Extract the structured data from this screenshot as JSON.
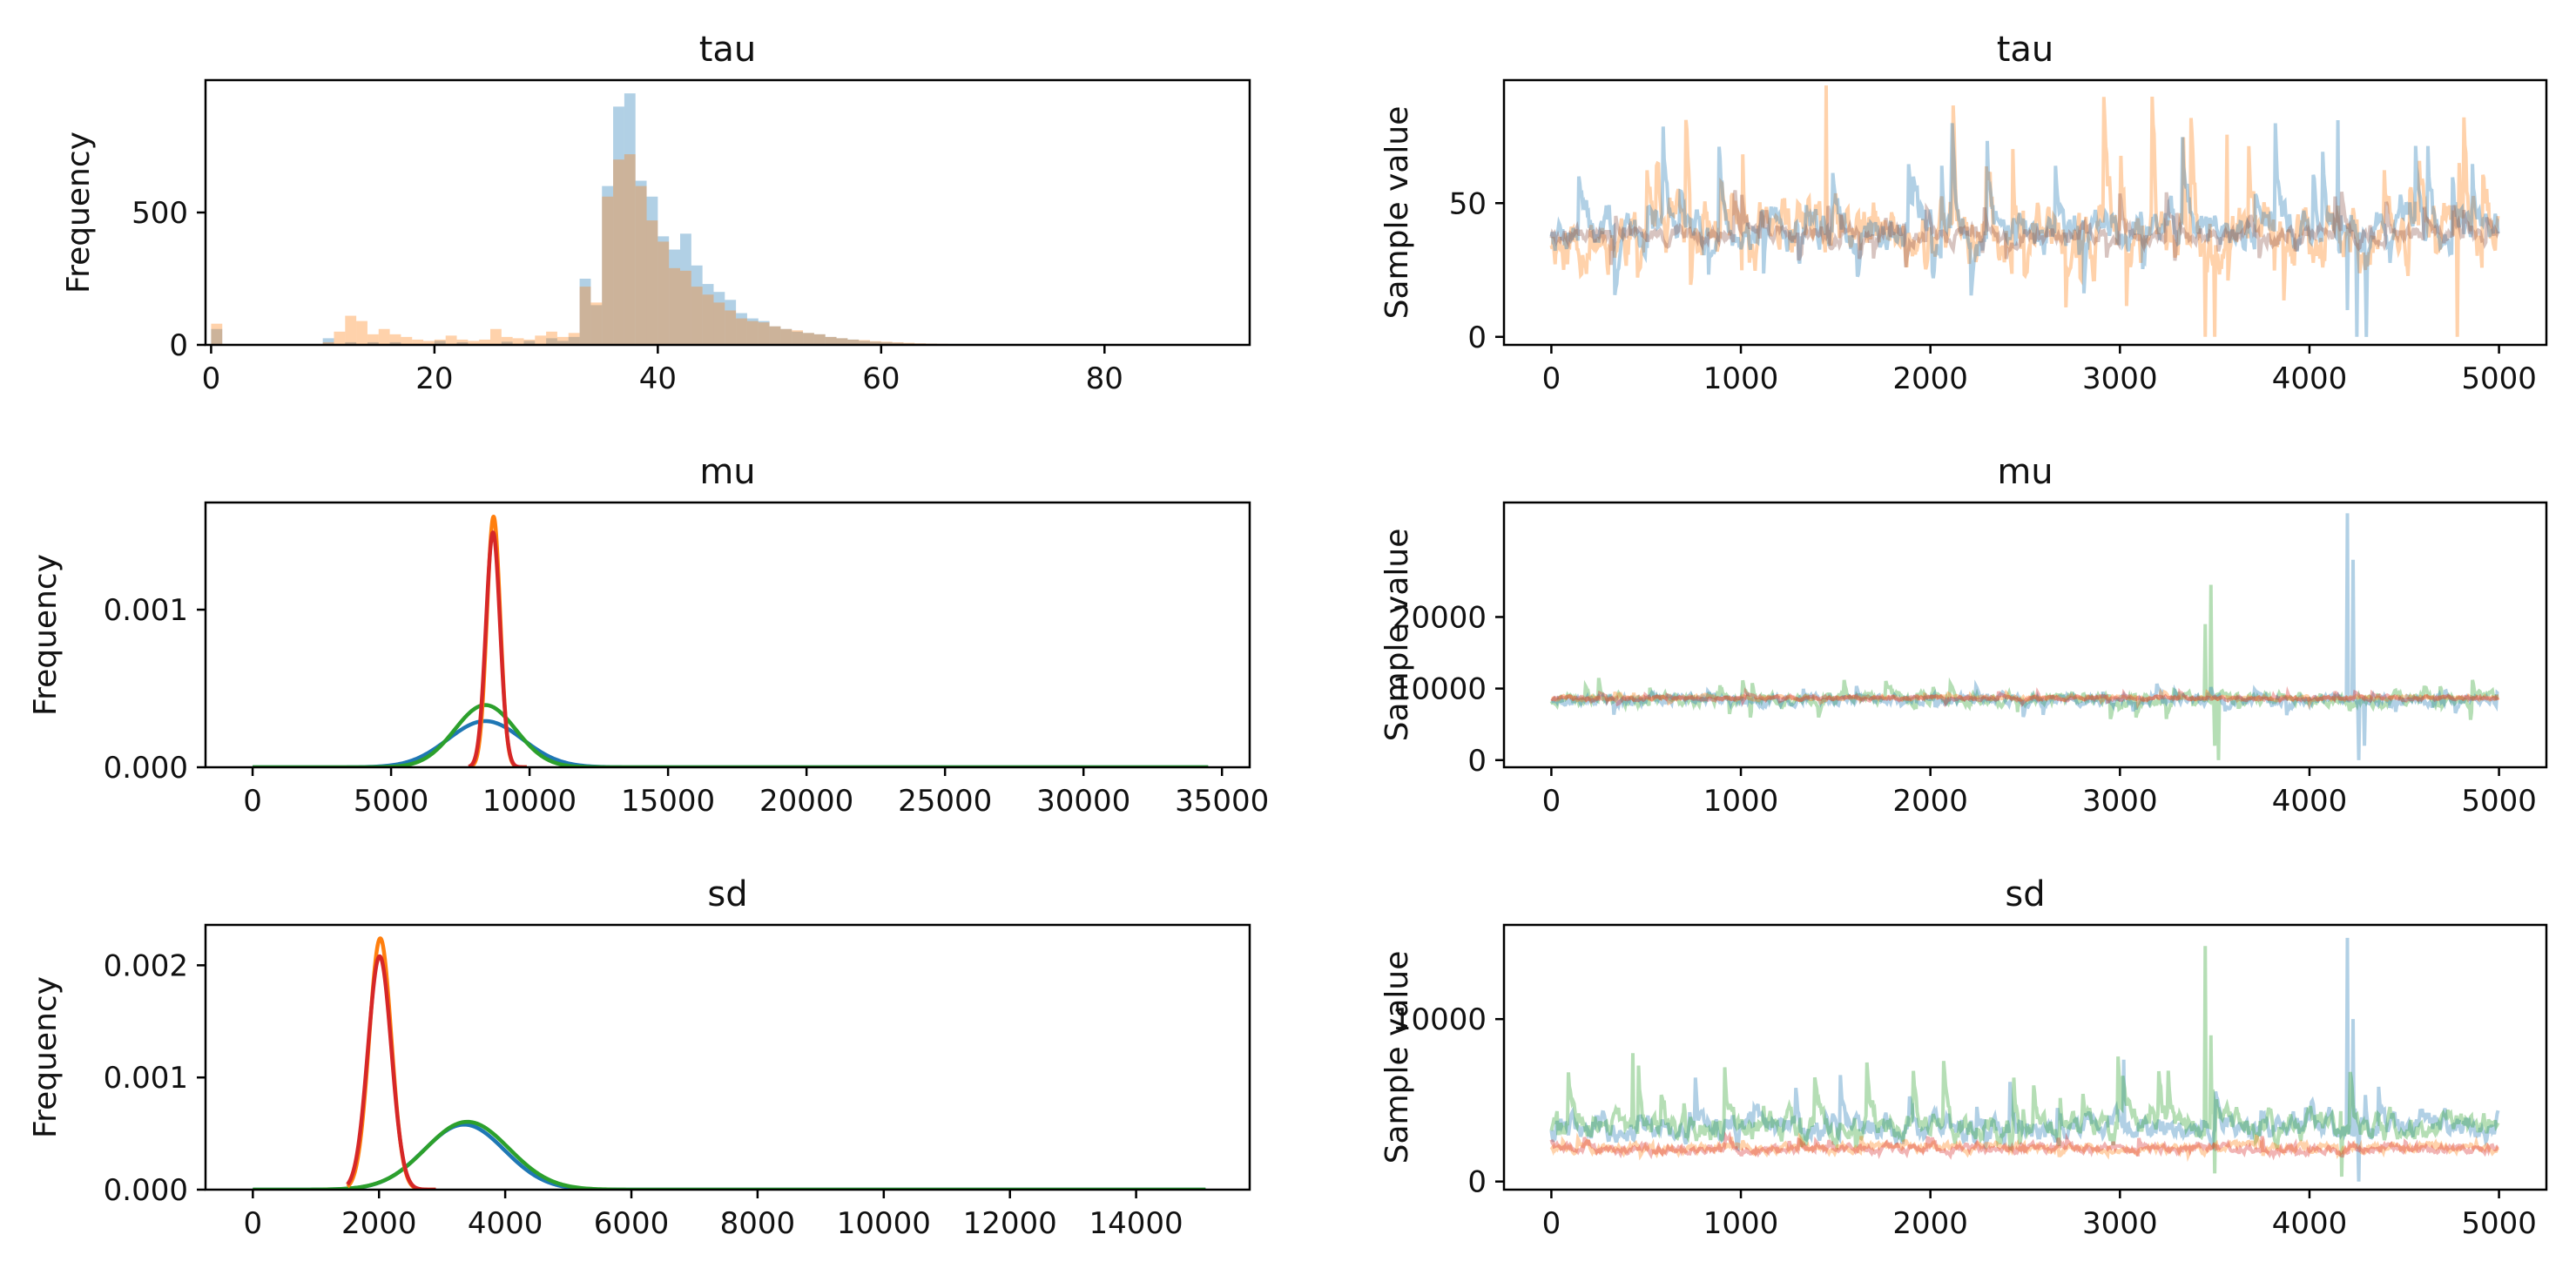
{
  "colors": {
    "blue": "#1f77b4",
    "orange": "#ff7f0e",
    "green": "#2ca02c",
    "red": "#d62728"
  },
  "chart_data": [
    {
      "type": "histogram",
      "title": "tau",
      "xlabel": "",
      "ylabel": "Frequency",
      "xlim": [
        -0.5,
        93
      ],
      "ylim": [
        0,
        1000
      ],
      "xticks": [
        0,
        20,
        40,
        60,
        80
      ],
      "yticks": [
        0,
        500
      ],
      "bin_width": 1,
      "series": [
        {
          "color": "#1f77b4",
          "alpha": 0.35,
          "bins": [
            [
              0,
              60
            ],
            [
              10,
              25
            ],
            [
              12,
              10
            ],
            [
              14,
              10
            ],
            [
              16,
              10
            ],
            [
              20,
              15
            ],
            [
              22,
              10
            ],
            [
              26,
              12
            ],
            [
              28,
              15
            ],
            [
              30,
              25
            ],
            [
              31,
              15
            ],
            [
              32,
              30
            ],
            [
              33,
              250
            ],
            [
              34,
              150
            ],
            [
              35,
              600
            ],
            [
              36,
              900
            ],
            [
              37,
              950
            ],
            [
              38,
              620
            ],
            [
              39,
              560
            ],
            [
              40,
              410
            ],
            [
              41,
              360
            ],
            [
              42,
              420
            ],
            [
              43,
              300
            ],
            [
              44,
              230
            ],
            [
              45,
              200
            ],
            [
              46,
              170
            ],
            [
              47,
              120
            ],
            [
              48,
              100
            ],
            [
              49,
              90
            ],
            [
              50,
              70
            ],
            [
              51,
              60
            ],
            [
              52,
              50
            ],
            [
              53,
              45
            ],
            [
              54,
              40
            ],
            [
              55,
              30
            ],
            [
              56,
              25
            ],
            [
              57,
              20
            ],
            [
              58,
              15
            ],
            [
              59,
              12
            ],
            [
              60,
              10
            ],
            [
              61,
              8
            ],
            [
              62,
              6
            ],
            [
              63,
              5
            ],
            [
              64,
              4
            ],
            [
              65,
              3
            ],
            [
              66,
              2
            ],
            [
              68,
              2
            ],
            [
              70,
              1
            ]
          ]
        },
        {
          "color": "#ff7f0e",
          "alpha": 0.35,
          "bins": [
            [
              0,
              80
            ],
            [
              10,
              10
            ],
            [
              11,
              50
            ],
            [
              12,
              110
            ],
            [
              13,
              90
            ],
            [
              14,
              40
            ],
            [
              15,
              60
            ],
            [
              16,
              40
            ],
            [
              17,
              30
            ],
            [
              18,
              20
            ],
            [
              19,
              15
            ],
            [
              20,
              20
            ],
            [
              21,
              35
            ],
            [
              22,
              20
            ],
            [
              23,
              15
            ],
            [
              24,
              20
            ],
            [
              25,
              60
            ],
            [
              26,
              30
            ],
            [
              27,
              25
            ],
            [
              28,
              20
            ],
            [
              29,
              35
            ],
            [
              30,
              50
            ],
            [
              31,
              30
            ],
            [
              32,
              45
            ],
            [
              33,
              220
            ],
            [
              34,
              160
            ],
            [
              35,
              560
            ],
            [
              36,
              700
            ],
            [
              37,
              720
            ],
            [
              38,
              600
            ],
            [
              39,
              470
            ],
            [
              40,
              390
            ],
            [
              41,
              290
            ],
            [
              42,
              280
            ],
            [
              43,
              220
            ],
            [
              44,
              190
            ],
            [
              45,
              160
            ],
            [
              46,
              130
            ],
            [
              47,
              100
            ],
            [
              48,
              90
            ],
            [
              49,
              85
            ],
            [
              50,
              70
            ],
            [
              51,
              60
            ],
            [
              52,
              55
            ],
            [
              53,
              45
            ],
            [
              54,
              40
            ],
            [
              55,
              30
            ],
            [
              56,
              25
            ],
            [
              57,
              20
            ],
            [
              58,
              18
            ],
            [
              59,
              14
            ],
            [
              60,
              12
            ],
            [
              61,
              10
            ],
            [
              62,
              8
            ],
            [
              63,
              6
            ],
            [
              64,
              5
            ],
            [
              65,
              4
            ],
            [
              66,
              3
            ],
            [
              67,
              2
            ],
            [
              68,
              2
            ],
            [
              70,
              1
            ]
          ]
        }
      ]
    },
    {
      "type": "line",
      "title": "tau",
      "xlabel": "",
      "ylabel": "Sample value",
      "xlim": [
        -250,
        5250
      ],
      "ylim": [
        -3,
        96
      ],
      "xticks": [
        0,
        1000,
        2000,
        3000,
        4000,
        5000
      ],
      "yticks": [
        0,
        50
      ],
      "series": [
        {
          "color": "#ff7f0e",
          "alpha": 0.35,
          "trace": {
            "n": 5000,
            "center": 38,
            "spread": 22,
            "low": 10,
            "high": 90,
            "seed": 11,
            "spikes": [
              [
                1450,
                94
              ],
              [
                3450,
                0
              ],
              [
                3500,
                0
              ],
              [
                4780,
                0
              ]
            ]
          }
        },
        {
          "color": "#1f77b4",
          "alpha": 0.35,
          "trace": {
            "n": 5000,
            "center": 40,
            "spread": 14,
            "low": 15,
            "high": 80,
            "seed": 7,
            "spikes": [
              [
                4150,
                81
              ],
              [
                4200,
                10
              ],
              [
                4250,
                0
              ],
              [
                4300,
                0
              ]
            ]
          }
        },
        {
          "color": "#8c564b",
          "alpha": 0.35,
          "trace": {
            "n": 5000,
            "center": 38,
            "spread": 6,
            "low": 25,
            "high": 55,
            "seed": 3,
            "spikes": []
          }
        }
      ]
    },
    {
      "type": "line",
      "title": "mu",
      "xlabel": "",
      "ylabel": "Frequency",
      "xlim": [
        -1700,
        36000
      ],
      "ylim": [
        0,
        0.00168
      ],
      "xticks": [
        0,
        5000,
        10000,
        15000,
        20000,
        25000,
        30000,
        35000
      ],
      "yticks": [
        0.0,
        0.001
      ],
      "yticklabels": [
        "0.000",
        "0.001"
      ],
      "series": [
        {
          "color": "#1f77b4",
          "density": {
            "x0": 0,
            "x1": 34500,
            "mean": 8400,
            "sd": 1350,
            "peak": 0.000293
          }
        },
        {
          "color": "#2ca02c",
          "density": {
            "x0": 0,
            "x1": 34500,
            "mean": 8400,
            "sd": 1100,
            "peak": 0.000395
          }
        },
        {
          "color": "#ff7f0e",
          "density": {
            "x0": 7800,
            "x1": 9900,
            "mean": 8700,
            "sd": 240,
            "peak": 0.00159
          }
        },
        {
          "color": "#d62728",
          "density": {
            "x0": 7800,
            "x1": 9900,
            "mean": 8680,
            "sd": 255,
            "peak": 0.00149
          }
        }
      ]
    },
    {
      "type": "line",
      "title": "mu",
      "xlabel": "",
      "ylabel": "Sample value",
      "xlim": [
        -250,
        5250
      ],
      "ylim": [
        -1000,
        36000
      ],
      "xticks": [
        0,
        1000,
        2000,
        3000,
        4000,
        5000
      ],
      "yticks": [
        0,
        10000,
        20000
      ],
      "series": [
        {
          "color": "#2ca02c",
          "alpha": 0.35,
          "trace": {
            "n": 5000,
            "center": 8500,
            "spread": 1500,
            "low": 5500,
            "high": 11500,
            "seed": 21,
            "spikes": [
              [
                3450,
                19000
              ],
              [
                3480,
                24500
              ],
              [
                3500,
                2000
              ],
              [
                3520,
                0
              ]
            ]
          }
        },
        {
          "color": "#1f77b4",
          "alpha": 0.35,
          "trace": {
            "n": 5000,
            "center": 8400,
            "spread": 1300,
            "low": 6000,
            "high": 11000,
            "seed": 17,
            "spikes": [
              [
                4200,
                34500
              ],
              [
                4230,
                28000
              ],
              [
                4260,
                0
              ],
              [
                4290,
                2000
              ]
            ]
          }
        },
        {
          "color": "#ff7f0e",
          "alpha": 0.35,
          "trace": {
            "n": 5000,
            "center": 8700,
            "spread": 500,
            "low": 7800,
            "high": 9600,
            "seed": 5,
            "spikes": []
          }
        },
        {
          "color": "#d62728",
          "alpha": 0.35,
          "trace": {
            "n": 5000,
            "center": 8650,
            "spread": 500,
            "low": 7800,
            "high": 9600,
            "seed": 9,
            "spikes": []
          }
        }
      ]
    },
    {
      "type": "line",
      "title": "sd",
      "xlabel": "",
      "ylabel": "Frequency",
      "xlim": [
        -750,
        15800
      ],
      "ylim": [
        0,
        0.00236
      ],
      "xticks": [
        0,
        2000,
        4000,
        6000,
        8000,
        10000,
        12000,
        14000
      ],
      "yticks": [
        0.0,
        0.001,
        0.002
      ],
      "yticklabels": [
        "0.000",
        "0.001",
        "0.002"
      ],
      "series": [
        {
          "color": "#1f77b4",
          "density": {
            "x0": 0,
            "x1": 15100,
            "mean": 3350,
            "sd": 640,
            "peak": 0.00058
          }
        },
        {
          "color": "#2ca02c",
          "density": {
            "x0": 0,
            "x1": 15100,
            "mean": 3400,
            "sd": 660,
            "peak": 0.000605
          }
        },
        {
          "color": "#ff7f0e",
          "density": {
            "x0": 1500,
            "x1": 2900,
            "mean": 2020,
            "sd": 175,
            "peak": 0.00224
          }
        },
        {
          "color": "#d62728",
          "density": {
            "x0": 1500,
            "x1": 2900,
            "mean": 2010,
            "sd": 185,
            "peak": 0.00208
          }
        }
      ]
    },
    {
      "type": "line",
      "title": "sd",
      "xlabel": "",
      "ylabel": "Sample value",
      "xlim": [
        -250,
        5250
      ],
      "ylim": [
        -500,
        15800
      ],
      "xticks": [
        0,
        1000,
        2000,
        3000,
        4000,
        5000
      ],
      "yticks": [
        0,
        10000
      ],
      "series": [
        {
          "color": "#1f77b4",
          "alpha": 0.35,
          "trace": {
            "n": 5000,
            "center": 3400,
            "spread": 1500,
            "low": 2000,
            "high": 7000,
            "seed": 31,
            "spikes": [
              [
                3020,
                7500
              ],
              [
                4200,
                15000
              ],
              [
                4230,
                10000
              ],
              [
                4260,
                0
              ]
            ]
          }
        },
        {
          "color": "#2ca02c",
          "alpha": 0.35,
          "trace": {
            "n": 5000,
            "center": 3400,
            "spread": 1600,
            "low": 2000,
            "high": 7800,
            "seed": 29,
            "spikes": [
              [
                430,
                7900
              ],
              [
                3450,
                14500
              ],
              [
                3480,
                9000
              ],
              [
                3500,
                500
              ],
              [
                4170,
                300
              ]
            ]
          }
        },
        {
          "color": "#ff7f0e",
          "alpha": 0.35,
          "trace": {
            "n": 5000,
            "center": 2050,
            "spread": 500,
            "low": 1500,
            "high": 2800,
            "seed": 13,
            "spikes": []
          }
        },
        {
          "color": "#d62728",
          "alpha": 0.35,
          "trace": {
            "n": 5000,
            "center": 2000,
            "spread": 500,
            "low": 1500,
            "high": 2800,
            "seed": 19,
            "spikes": []
          }
        }
      ]
    }
  ]
}
